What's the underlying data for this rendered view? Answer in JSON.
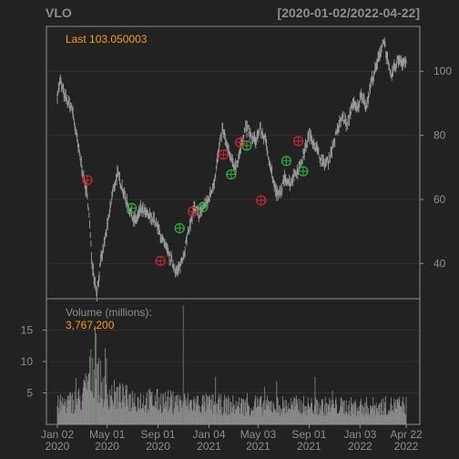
{
  "chart_data": {
    "type": "candlestick",
    "title": "VLO",
    "date_range_label": "[2020-01-02/2022-04-22]",
    "last_label": "Last 103.050003",
    "volume_label": "Volume (millions):",
    "volume_value": "3,767,200",
    "price_axis": {
      "ylim": [
        29,
        114
      ],
      "ticks": [
        40,
        60,
        80,
        100
      ]
    },
    "volume_axis": {
      "ylim": [
        0,
        20
      ],
      "ticks": [
        5,
        10,
        15
      ]
    },
    "x_ticks": [
      {
        "month": "Jan 02",
        "year": "2020",
        "index": 0
      },
      {
        "month": "May 01",
        "year": "2020",
        "index": 83
      },
      {
        "month": "Sep 01",
        "year": "2020",
        "index": 168
      },
      {
        "month": "Jan 04",
        "year": "2021",
        "index": 253
      },
      {
        "month": "May 03",
        "year": "2021",
        "index": 335
      },
      {
        "month": "Sep 01",
        "year": "2021",
        "index": 420
      },
      {
        "month": "Jan 03",
        "year": "2022",
        "index": 505
      },
      {
        "month": "Apr 22",
        "year": "2022",
        "index": 582
      }
    ],
    "n_days": 583,
    "price_anchors": [
      [
        0,
        93
      ],
      [
        5,
        97
      ],
      [
        12,
        92
      ],
      [
        25,
        88
      ],
      [
        35,
        76
      ],
      [
        45,
        66
      ],
      [
        52,
        58
      ],
      [
        57,
        42
      ],
      [
        62,
        35
      ],
      [
        66,
        31
      ],
      [
        72,
        40
      ],
      [
        78,
        46
      ],
      [
        84,
        52
      ],
      [
        92,
        62
      ],
      [
        100,
        68
      ],
      [
        108,
        64
      ],
      [
        114,
        60
      ],
      [
        122,
        56
      ],
      [
        130,
        53
      ],
      [
        140,
        57
      ],
      [
        150,
        55
      ],
      [
        160,
        54
      ],
      [
        170,
        50
      ],
      [
        180,
        45
      ],
      [
        190,
        41
      ],
      [
        200,
        37
      ],
      [
        206,
        40
      ],
      [
        212,
        44
      ],
      [
        220,
        51
      ],
      [
        228,
        57
      ],
      [
        236,
        55
      ],
      [
        244,
        58
      ],
      [
        250,
        59
      ],
      [
        256,
        62
      ],
      [
        262,
        66
      ],
      [
        270,
        76
      ],
      [
        276,
        82
      ],
      [
        282,
        77
      ],
      [
        290,
        72
      ],
      [
        298,
        70
      ],
      [
        306,
        76
      ],
      [
        314,
        83
      ],
      [
        322,
        80
      ],
      [
        330,
        78
      ],
      [
        338,
        82
      ],
      [
        346,
        79
      ],
      [
        352,
        74
      ],
      [
        358,
        68
      ],
      [
        362,
        64
      ],
      [
        368,
        61
      ],
      [
        374,
        63
      ],
      [
        380,
        67
      ],
      [
        388,
        65
      ],
      [
        396,
        68
      ],
      [
        404,
        70
      ],
      [
        412,
        75
      ],
      [
        420,
        80
      ],
      [
        428,
        78
      ],
      [
        436,
        74
      ],
      [
        444,
        71
      ],
      [
        452,
        72
      ],
      [
        460,
        77
      ],
      [
        468,
        82
      ],
      [
        476,
        86
      ],
      [
        484,
        83
      ],
      [
        492,
        90
      ],
      [
        500,
        88
      ],
      [
        508,
        93
      ],
      [
        516,
        89
      ],
      [
        524,
        97
      ],
      [
        532,
        101
      ],
      [
        540,
        107
      ],
      [
        545,
        110
      ],
      [
        550,
        104
      ],
      [
        556,
        98
      ],
      [
        562,
        101
      ],
      [
        570,
        104
      ],
      [
        576,
        103
      ],
      [
        582,
        103.05
      ]
    ],
    "volume_level": [
      [
        0,
        3
      ],
      [
        40,
        4
      ],
      [
        60,
        9
      ],
      [
        80,
        5
      ],
      [
        120,
        4
      ],
      [
        200,
        3.5
      ],
      [
        300,
        3
      ],
      [
        400,
        3
      ],
      [
        500,
        2.8
      ],
      [
        582,
        3
      ]
    ],
    "volume_spikes": [
      {
        "index": 65,
        "value": 14.5
      },
      {
        "index": 210,
        "value": 19
      }
    ],
    "buy_signals": [
      {
        "index": 124,
        "value": 57.3
      },
      {
        "index": 204,
        "value": 51.0
      },
      {
        "index": 243,
        "value": 57.6
      },
      {
        "index": 290,
        "value": 67.8
      },
      {
        "index": 316,
        "value": 76.8
      },
      {
        "index": 382,
        "value": 72.0
      },
      {
        "index": 410,
        "value": 68.8
      }
    ],
    "sell_signals": [
      {
        "index": 50,
        "value": 66.0
      },
      {
        "index": 172,
        "value": 40.8
      },
      {
        "index": 226,
        "value": 56.2
      },
      {
        "index": 277,
        "value": 74.0
      },
      {
        "index": 305,
        "value": 77.8
      },
      {
        "index": 340,
        "value": 59.7
      },
      {
        "index": 402,
        "value": 78.2
      }
    ],
    "colors": {
      "background": "#222222",
      "panel_border": "#8c8c8c",
      "grid": "#303030",
      "price_line": "#9a9a9a",
      "volume": "#8c8c8c",
      "axis_text": "#8c8c8c",
      "title_text": "#8c8c8c",
      "accent_text": "#f39c12",
      "buy_signal": "#27ae3c",
      "sell_signal": "#c0282d"
    }
  }
}
